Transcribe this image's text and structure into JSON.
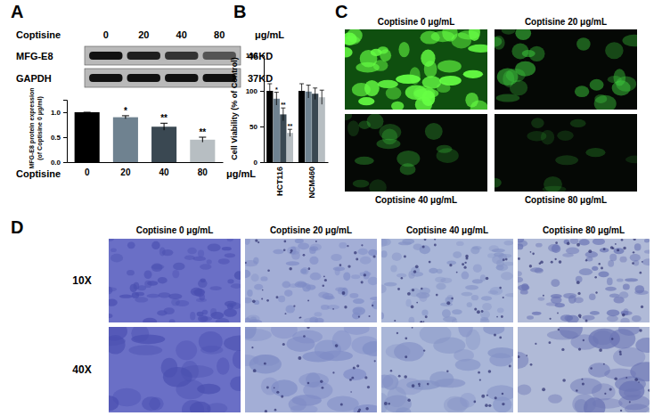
{
  "figure": {
    "blot": {
      "label": "A",
      "header": "Coptisine",
      "doses": [
        "0",
        "20",
        "40",
        "80"
      ],
      "unit": "μg/mL",
      "rows": [
        {
          "name": "MFG-E8",
          "size": "46KD"
        },
        {
          "name": "GAPDH",
          "size": "37KD"
        }
      ]
    },
    "fluorescence": {
      "label": "C",
      "captions": [
        "Coptisine 0 μg/mL",
        "Coptisine 20 μg/mL",
        "Coptisine 40 μg/mL",
        "Coptisine 80 μg/mL"
      ]
    },
    "microscopy": {
      "label": "D",
      "columns": [
        "Coptisine 0 μg/mL",
        "Coptisine 20 μg/mL",
        "Coptisine 40 μg/mL",
        "Coptisine 80 μg/mL"
      ],
      "rows": [
        "10X",
        "40X"
      ]
    }
  },
  "chart_data": [
    {
      "type": "bar",
      "categories": [
        "0",
        "20",
        "40",
        "80"
      ],
      "values": [
        1.0,
        0.9,
        0.71,
        0.45
      ],
      "errors": [
        0,
        0.03,
        0.07,
        0.05
      ],
      "significance": [
        null,
        "*",
        "**",
        "**"
      ],
      "colors": [
        "#000000",
        "#6f8290",
        "#3a4852",
        "#b7bec2"
      ],
      "x_label": "Coptisine",
      "x_unit": "μg/mL",
      "y_label": [
        "MFG-E8 protein expression",
        "(of Coptisine 0 μg/ml)"
      ],
      "ylim": [
        0,
        1.25
      ],
      "yticks": [
        {
          "value": 0,
          "label": "0.0"
        },
        {
          "value": 0.5,
          "label": "0.5"
        },
        {
          "value": 1,
          "label": "1.0"
        }
      ]
    },
    {
      "type": "bar",
      "panel_label": "B",
      "categories": [
        "HCT116",
        "NCM460"
      ],
      "series": [
        {
          "color": "#000000",
          "values": [
            100,
            100
          ],
          "errors": [
            10,
            10
          ],
          "significance": [
            null,
            null
          ]
        },
        {
          "color": "#6f8290",
          "values": [
            89,
            99
          ],
          "errors": [
            9,
            9
          ],
          "significance": [
            "*",
            null
          ]
        },
        {
          "color": "#3a4852",
          "values": [
            67,
            96
          ],
          "errors": [
            9,
            8
          ],
          "significance": [
            "**",
            null
          ]
        },
        {
          "color": "#b7bec2",
          "values": [
            41,
            91
          ],
          "errors": [
            5,
            10
          ],
          "significance": [
            "**",
            null
          ]
        }
      ],
      "y_label": "Cell Viability (% of Control)",
      "ylim": [
        0,
        150
      ],
      "yticks": [
        0,
        50,
        100,
        150
      ]
    }
  ]
}
